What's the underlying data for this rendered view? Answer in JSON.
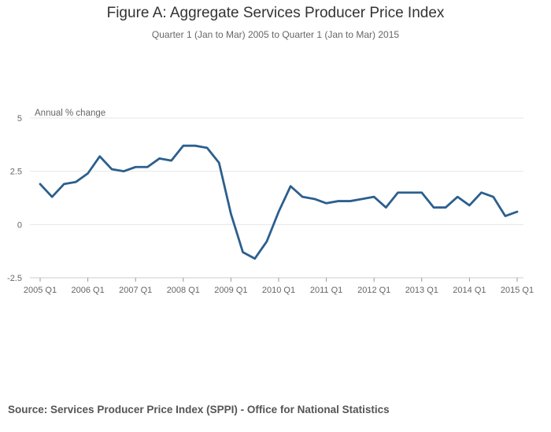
{
  "title": "Figure A: Aggregate Services Producer Price Index",
  "subtitle": "Quarter 1 (Jan to Mar) 2005 to Quarter 1 (Jan to Mar) 2015",
  "source": "Source: Services Producer Price Index (SPPI) - Office for National Statistics",
  "colors": {
    "line": "#2b5f8e",
    "grid": "#e6e6e6",
    "axis_text": "#666666"
  },
  "chart_data": {
    "type": "line",
    "title": "Figure A: Aggregate Services Producer Price Index",
    "ylabel": "Annual % change",
    "xlabel": "",
    "ylim": [
      -2.5,
      5
    ],
    "yticks": [
      -2.5,
      0,
      2.5,
      5
    ],
    "ytick_labels": [
      "-2.5",
      "0",
      "2.5",
      "5"
    ],
    "xtick_labels": [
      "2005 Q1",
      "2006 Q1",
      "2007 Q1",
      "2008 Q1",
      "2009 Q1",
      "2010 Q1",
      "2011 Q1",
      "2012 Q1",
      "2013 Q1",
      "2014 Q1",
      "2015 Q1"
    ],
    "x": [
      "2005 Q1",
      "2005 Q2",
      "2005 Q3",
      "2005 Q4",
      "2006 Q1",
      "2006 Q2",
      "2006 Q3",
      "2006 Q4",
      "2007 Q1",
      "2007 Q2",
      "2007 Q3",
      "2007 Q4",
      "2008 Q1",
      "2008 Q2",
      "2008 Q3",
      "2008 Q4",
      "2009 Q1",
      "2009 Q2",
      "2009 Q3",
      "2009 Q4",
      "2010 Q1",
      "2010 Q2",
      "2010 Q3",
      "2010 Q4",
      "2011 Q1",
      "2011 Q2",
      "2011 Q3",
      "2011 Q4",
      "2012 Q1",
      "2012 Q2",
      "2012 Q3",
      "2012 Q4",
      "2013 Q1",
      "2013 Q2",
      "2013 Q3",
      "2013 Q4",
      "2014 Q1",
      "2014 Q2",
      "2014 Q3",
      "2014 Q4",
      "2015 Q1"
    ],
    "series": [
      {
        "name": "Annual % change",
        "values": [
          1.9,
          1.3,
          1.9,
          2.0,
          2.4,
          3.2,
          2.6,
          2.5,
          2.7,
          2.7,
          3.1,
          3.0,
          3.7,
          3.7,
          3.6,
          2.9,
          0.5,
          -1.3,
          -1.6,
          -0.8,
          0.6,
          1.8,
          1.3,
          1.2,
          1.0,
          1.1,
          1.1,
          1.2,
          1.3,
          0.8,
          1.5,
          1.5,
          1.5,
          0.8,
          0.8,
          1.3,
          0.9,
          1.5,
          1.3,
          0.4,
          0.6
        ]
      }
    ],
    "grid": true
  }
}
